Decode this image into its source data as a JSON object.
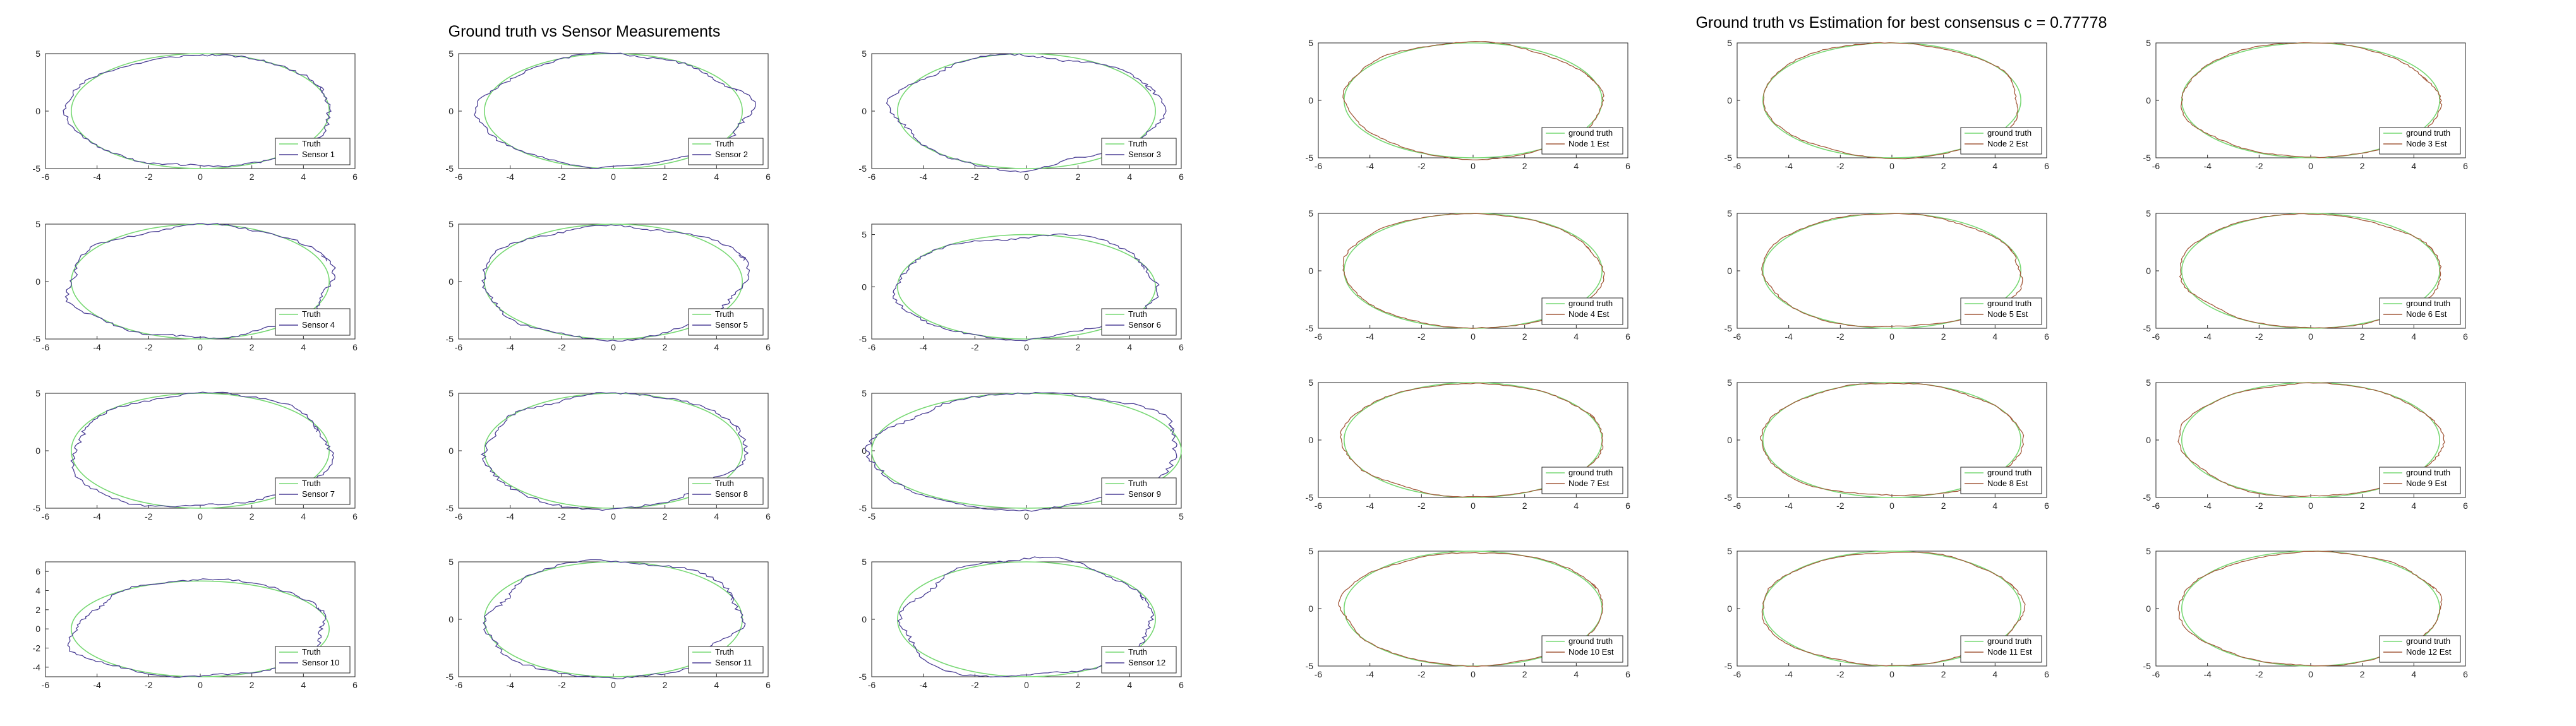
{
  "left_title": "Ground truth vs Sensor Measurements",
  "right_title": "Ground truth vs Estimation for best consensus c = 0.77778",
  "colors": {
    "truth": "#77d873",
    "sensor": "#4b3f95",
    "ground_truth": "#77d873",
    "estimate": "#a35a3c",
    "axes": "#262626"
  },
  "chart_data": {
    "type": "line",
    "truth_ellipse": {
      "center": [
        0,
        0
      ],
      "a": 5,
      "b": 5
    },
    "left_panels": [
      {
        "legend": [
          "Truth",
          "Sensor 1"
        ],
        "xlim": [
          -6,
          6
        ],
        "ylim": [
          -5,
          5
        ],
        "xticks": [
          "-6",
          "-4",
          "-2",
          "0",
          "2",
          "4",
          "6"
        ],
        "yticks": [
          "-5",
          "0",
          "5"
        ]
      },
      {
        "legend": [
          "Truth",
          "Sensor 2"
        ],
        "xlim": [
          -6,
          6
        ],
        "ylim": [
          -5,
          5
        ],
        "xticks": [
          "-6",
          "-4",
          "-2",
          "0",
          "2",
          "4",
          "6"
        ],
        "yticks": [
          "-5",
          "0",
          "5"
        ]
      },
      {
        "legend": [
          "Truth",
          "Sensor 3"
        ],
        "xlim": [
          -6,
          6
        ],
        "ylim": [
          -5,
          5
        ],
        "xticks": [
          "-6",
          "-4",
          "-2",
          "0",
          "2",
          "4",
          "6"
        ],
        "yticks": [
          "-5",
          "0",
          "5"
        ]
      },
      {
        "legend": [
          "Truth",
          "Sensor 4"
        ],
        "xlim": [
          -6,
          6
        ],
        "ylim": [
          -5,
          5
        ],
        "xticks": [
          "-6",
          "-4",
          "-2",
          "0",
          "2",
          "4",
          "6"
        ],
        "yticks": [
          "-5",
          "0",
          "5"
        ]
      },
      {
        "legend": [
          "Truth",
          "Sensor 5"
        ],
        "xlim": [
          -6,
          6
        ],
        "ylim": [
          -5,
          5
        ],
        "xticks": [
          "-6",
          "-4",
          "-2",
          "0",
          "2",
          "4",
          "6"
        ],
        "yticks": [
          "-5",
          "0",
          "5"
        ]
      },
      {
        "legend": [
          "Truth",
          "Sensor 6"
        ],
        "xlim": [
          -6,
          6
        ],
        "ylim": [
          -5,
          6
        ],
        "xticks": [
          "-6",
          "-4",
          "-2",
          "0",
          "2",
          "4",
          "6"
        ],
        "yticks": [
          "-5",
          "0",
          "5"
        ]
      },
      {
        "legend": [
          "Truth",
          "Sensor 7"
        ],
        "xlim": [
          -6,
          6
        ],
        "ylim": [
          -5,
          5
        ],
        "xticks": [
          "-6",
          "-4",
          "-2",
          "0",
          "2",
          "4",
          "6"
        ],
        "yticks": [
          "-5",
          "0",
          "5"
        ]
      },
      {
        "legend": [
          "Truth",
          "Sensor 8"
        ],
        "xlim": [
          -6,
          6
        ],
        "ylim": [
          -5,
          5
        ],
        "xticks": [
          "-6",
          "-4",
          "-2",
          "0",
          "2",
          "4",
          "6"
        ],
        "yticks": [
          "-5",
          "0",
          "5"
        ]
      },
      {
        "legend": [
          "Truth",
          "Sensor 9"
        ],
        "xlim": [
          -5,
          5
        ],
        "ylim": [
          -5,
          5
        ],
        "xticks": [
          "-5",
          "0",
          "5"
        ],
        "yticks": [
          "-5",
          "0",
          "5"
        ]
      },
      {
        "legend": [
          "Truth",
          "Sensor 10"
        ],
        "xlim": [
          -6,
          6
        ],
        "ylim": [
          -5,
          7
        ],
        "xticks": [
          "-6",
          "-4",
          "-2",
          "0",
          "2",
          "4",
          "6"
        ],
        "yticks": [
          "-4",
          "-2",
          "0",
          "2",
          "4",
          "6"
        ]
      },
      {
        "legend": [
          "Truth",
          "Sensor 11"
        ],
        "xlim": [
          -6,
          6
        ],
        "ylim": [
          -5,
          5
        ],
        "xticks": [
          "-6",
          "-4",
          "-2",
          "0",
          "2",
          "4",
          "6"
        ],
        "yticks": [
          "-5",
          "0",
          "5"
        ]
      },
      {
        "legend": [
          "Truth",
          "Sensor 12"
        ],
        "xlim": [
          -6,
          6
        ],
        "ylim": [
          -5,
          5
        ],
        "xticks": [
          "-6",
          "-4",
          "-2",
          "0",
          "2",
          "4",
          "6"
        ],
        "yticks": [
          "-5",
          "0",
          "5"
        ]
      }
    ],
    "right_panels": [
      {
        "legend": [
          "ground truth",
          "Node 1 Est"
        ],
        "xlim": [
          -6,
          6
        ],
        "ylim": [
          -5,
          5
        ],
        "xticks": [
          "-6",
          "-4",
          "-2",
          "0",
          "2",
          "4",
          "6"
        ],
        "yticks": [
          "-5",
          "0",
          "5"
        ]
      },
      {
        "legend": [
          "ground truth",
          "Node 2 Est"
        ],
        "xlim": [
          -6,
          6
        ],
        "ylim": [
          -5,
          5
        ],
        "xticks": [
          "-6",
          "-4",
          "-2",
          "0",
          "2",
          "4",
          "6"
        ],
        "yticks": [
          "-5",
          "0",
          "5"
        ]
      },
      {
        "legend": [
          "ground truth",
          "Node 3 Est"
        ],
        "xlim": [
          -6,
          6
        ],
        "ylim": [
          -5,
          5
        ],
        "xticks": [
          "-6",
          "-4",
          "-2",
          "0",
          "2",
          "4",
          "6"
        ],
        "yticks": [
          "-5",
          "0",
          "5"
        ]
      },
      {
        "legend": [
          "ground truth",
          "Node 4 Est"
        ],
        "xlim": [
          -6,
          6
        ],
        "ylim": [
          -5,
          5
        ],
        "xticks": [
          "-6",
          "-4",
          "-2",
          "0",
          "2",
          "4",
          "6"
        ],
        "yticks": [
          "-5",
          "0",
          "5"
        ]
      },
      {
        "legend": [
          "ground truth",
          "Node 5 Est"
        ],
        "xlim": [
          -6,
          6
        ],
        "ylim": [
          -5,
          5
        ],
        "xticks": [
          "-6",
          "-4",
          "-2",
          "0",
          "2",
          "4",
          "6"
        ],
        "yticks": [
          "-5",
          "0",
          "5"
        ]
      },
      {
        "legend": [
          "ground truth",
          "Node 6 Est"
        ],
        "xlim": [
          -6,
          6
        ],
        "ylim": [
          -5,
          5
        ],
        "xticks": [
          "-6",
          "-4",
          "-2",
          "0",
          "2",
          "4",
          "6"
        ],
        "yticks": [
          "-5",
          "0",
          "5"
        ]
      },
      {
        "legend": [
          "ground truth",
          "Node 7 Est"
        ],
        "xlim": [
          -6,
          6
        ],
        "ylim": [
          -5,
          5
        ],
        "xticks": [
          "-6",
          "-4",
          "-2",
          "0",
          "2",
          "4",
          "6"
        ],
        "yticks": [
          "-5",
          "0",
          "5"
        ]
      },
      {
        "legend": [
          "ground truth",
          "Node 8 Est"
        ],
        "xlim": [
          -6,
          6
        ],
        "ylim": [
          -5,
          5
        ],
        "xticks": [
          "-6",
          "-4",
          "-2",
          "0",
          "2",
          "4",
          "6"
        ],
        "yticks": [
          "-5",
          "0",
          "5"
        ]
      },
      {
        "legend": [
          "ground truth",
          "Node 9 Est"
        ],
        "xlim": [
          -6,
          6
        ],
        "ylim": [
          -5,
          5
        ],
        "xticks": [
          "-6",
          "-4",
          "-2",
          "0",
          "2",
          "4",
          "6"
        ],
        "yticks": [
          "-5",
          "0",
          "5"
        ]
      },
      {
        "legend": [
          "ground truth",
          "Node 10 Est"
        ],
        "xlim": [
          -6,
          6
        ],
        "ylim": [
          -5,
          5
        ],
        "xticks": [
          "-6",
          "-4",
          "-2",
          "0",
          "2",
          "4",
          "6"
        ],
        "yticks": [
          "-5",
          "0",
          "5"
        ]
      },
      {
        "legend": [
          "ground truth",
          "Node 11 Est"
        ],
        "xlim": [
          -6,
          6
        ],
        "ylim": [
          -5,
          5
        ],
        "xticks": [
          "-6",
          "-4",
          "-2",
          "0",
          "2",
          "4",
          "6"
        ],
        "yticks": [
          "-5",
          "0",
          "5"
        ]
      },
      {
        "legend": [
          "ground truth",
          "Node 12 Est"
        ],
        "xlim": [
          -6,
          6
        ],
        "ylim": [
          -5,
          5
        ],
        "xticks": [
          "-6",
          "-4",
          "-2",
          "0",
          "2",
          "4",
          "6"
        ],
        "yticks": [
          "-5",
          "0",
          "5"
        ]
      }
    ]
  }
}
